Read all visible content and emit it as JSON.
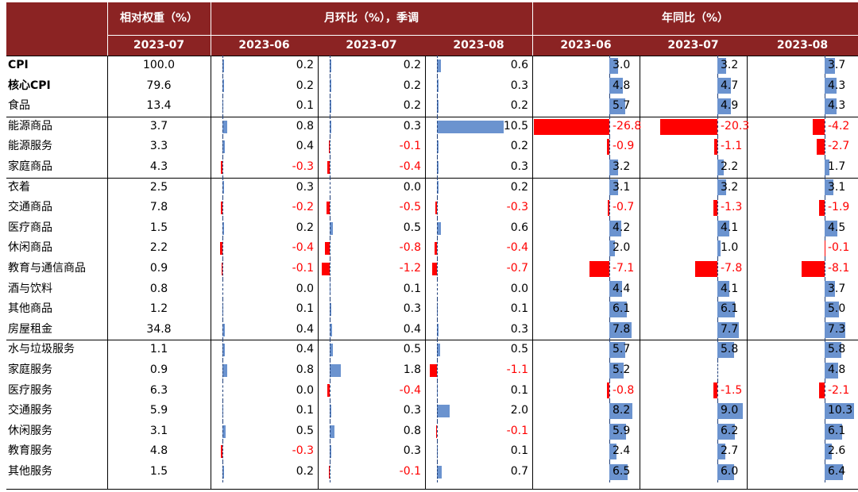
{
  "header": {
    "weight_title": "相对权重（%）",
    "mom_title": "月环比（%），季调",
    "yoy_title": "年同比（%）",
    "weight_period": "2023-07",
    "mom_periods": [
      "2023-06",
      "2023-07",
      "2023-08"
    ],
    "yoy_periods": [
      "2023-06",
      "2023-07",
      "2023-08"
    ]
  },
  "colors": {
    "header_bg": "#8b2323",
    "positive_bar": "#6b93cf",
    "negative_bar": "#ff0000",
    "negative_text": "#ff0000"
  },
  "chart_data": {
    "type": "table",
    "columns": [
      "相对权重（%） 2023-07",
      "月环比 2023-06",
      "月环比 2023-07",
      "月环比 2023-08",
      "年同比 2023-06",
      "年同比 2023-07",
      "年同比 2023-08"
    ],
    "rows": [
      {
        "name": "CPI",
        "bold": true,
        "weight": "100.0",
        "mom": [
          0.2,
          0.2,
          0.6
        ],
        "yoy": [
          3.0,
          3.2,
          3.7
        ]
      },
      {
        "name": "核心CPI",
        "bold": true,
        "weight": "79.6",
        "mom": [
          0.2,
          0.2,
          0.3
        ],
        "yoy": [
          4.8,
          4.7,
          4.3
        ]
      },
      {
        "name": "食品",
        "weight": "13.4",
        "mom": [
          0.1,
          0.2,
          0.2
        ],
        "yoy": [
          5.7,
          4.9,
          4.3
        ]
      },
      {
        "name": "能源商品",
        "weight": "3.7",
        "mom": [
          0.8,
          0.3,
          10.5
        ],
        "yoy": [
          -26.8,
          -20.3,
          -4.2
        ]
      },
      {
        "name": "能源服务",
        "weight": "3.3",
        "mom": [
          0.4,
          -0.1,
          0.2
        ],
        "yoy": [
          -0.9,
          -1.1,
          -2.7
        ]
      },
      {
        "name": "家庭商品",
        "weight": "4.3",
        "mom": [
          -0.3,
          -0.4,
          0.3
        ],
        "yoy": [
          3.2,
          2.2,
          1.7
        ]
      },
      {
        "name": "衣着",
        "weight": "2.5",
        "mom": [
          0.3,
          0.0,
          0.2
        ],
        "yoy": [
          3.1,
          3.2,
          3.1
        ]
      },
      {
        "name": "交通商品",
        "weight": "7.8",
        "mom": [
          -0.2,
          -0.5,
          -0.3
        ],
        "yoy": [
          -0.7,
          -1.3,
          -1.9
        ]
      },
      {
        "name": "医疗商品",
        "weight": "1.5",
        "mom": [
          0.2,
          0.5,
          0.6
        ],
        "yoy": [
          4.2,
          4.1,
          4.5
        ]
      },
      {
        "name": "休闲商品",
        "weight": "2.2",
        "mom": [
          -0.4,
          -0.8,
          -0.4
        ],
        "yoy": [
          2.0,
          1.0,
          -0.1
        ]
      },
      {
        "name": "教育与通信商品",
        "weight": "0.9",
        "mom": [
          -0.1,
          -1.2,
          -0.7
        ],
        "yoy": [
          -7.1,
          -7.8,
          -8.1
        ]
      },
      {
        "name": "酒与饮料",
        "weight": "0.8",
        "mom": [
          0.0,
          0.1,
          0.0
        ],
        "yoy": [
          4.4,
          4.1,
          3.7
        ]
      },
      {
        "name": "其他商品",
        "weight": "1.2",
        "mom": [
          0.1,
          0.3,
          0.1
        ],
        "yoy": [
          6.1,
          6.1,
          5.0
        ]
      },
      {
        "name": "房屋租金",
        "weight": "34.8",
        "mom": [
          0.4,
          0.4,
          0.3
        ],
        "yoy": [
          7.8,
          7.7,
          7.3
        ]
      },
      {
        "name": "水与垃圾服务",
        "weight": "1.1",
        "mom": [
          0.4,
          0.5,
          0.5
        ],
        "yoy": [
          5.7,
          5.8,
          5.8
        ]
      },
      {
        "name": "家庭服务",
        "weight": "0.9",
        "mom": [
          0.8,
          1.8,
          -1.1
        ],
        "yoy": [
          5.2,
          null,
          4.8
        ]
      },
      {
        "name": "医疗服务",
        "weight": "6.3",
        "mom": [
          0.0,
          -0.4,
          0.1
        ],
        "yoy": [
          -0.8,
          -1.5,
          -2.1
        ]
      },
      {
        "name": "交通服务",
        "weight": "5.9",
        "mom": [
          0.1,
          0.3,
          2.0
        ],
        "yoy": [
          8.2,
          9.0,
          10.3
        ]
      },
      {
        "name": "休闲服务",
        "weight": "3.1",
        "mom": [
          0.5,
          0.8,
          -0.1
        ],
        "yoy": [
          5.9,
          6.2,
          6.1
        ]
      },
      {
        "name": "教育服务",
        "weight": "4.8",
        "mom": [
          -0.3,
          0.3,
          0.1
        ],
        "yoy": [
          2.4,
          2.7,
          2.6
        ]
      },
      {
        "name": "其他服务",
        "weight": "1.5",
        "mom": [
          0.2,
          -0.1,
          0.7
        ],
        "yoy": [
          6.5,
          6.0,
          6.4
        ]
      }
    ]
  }
}
